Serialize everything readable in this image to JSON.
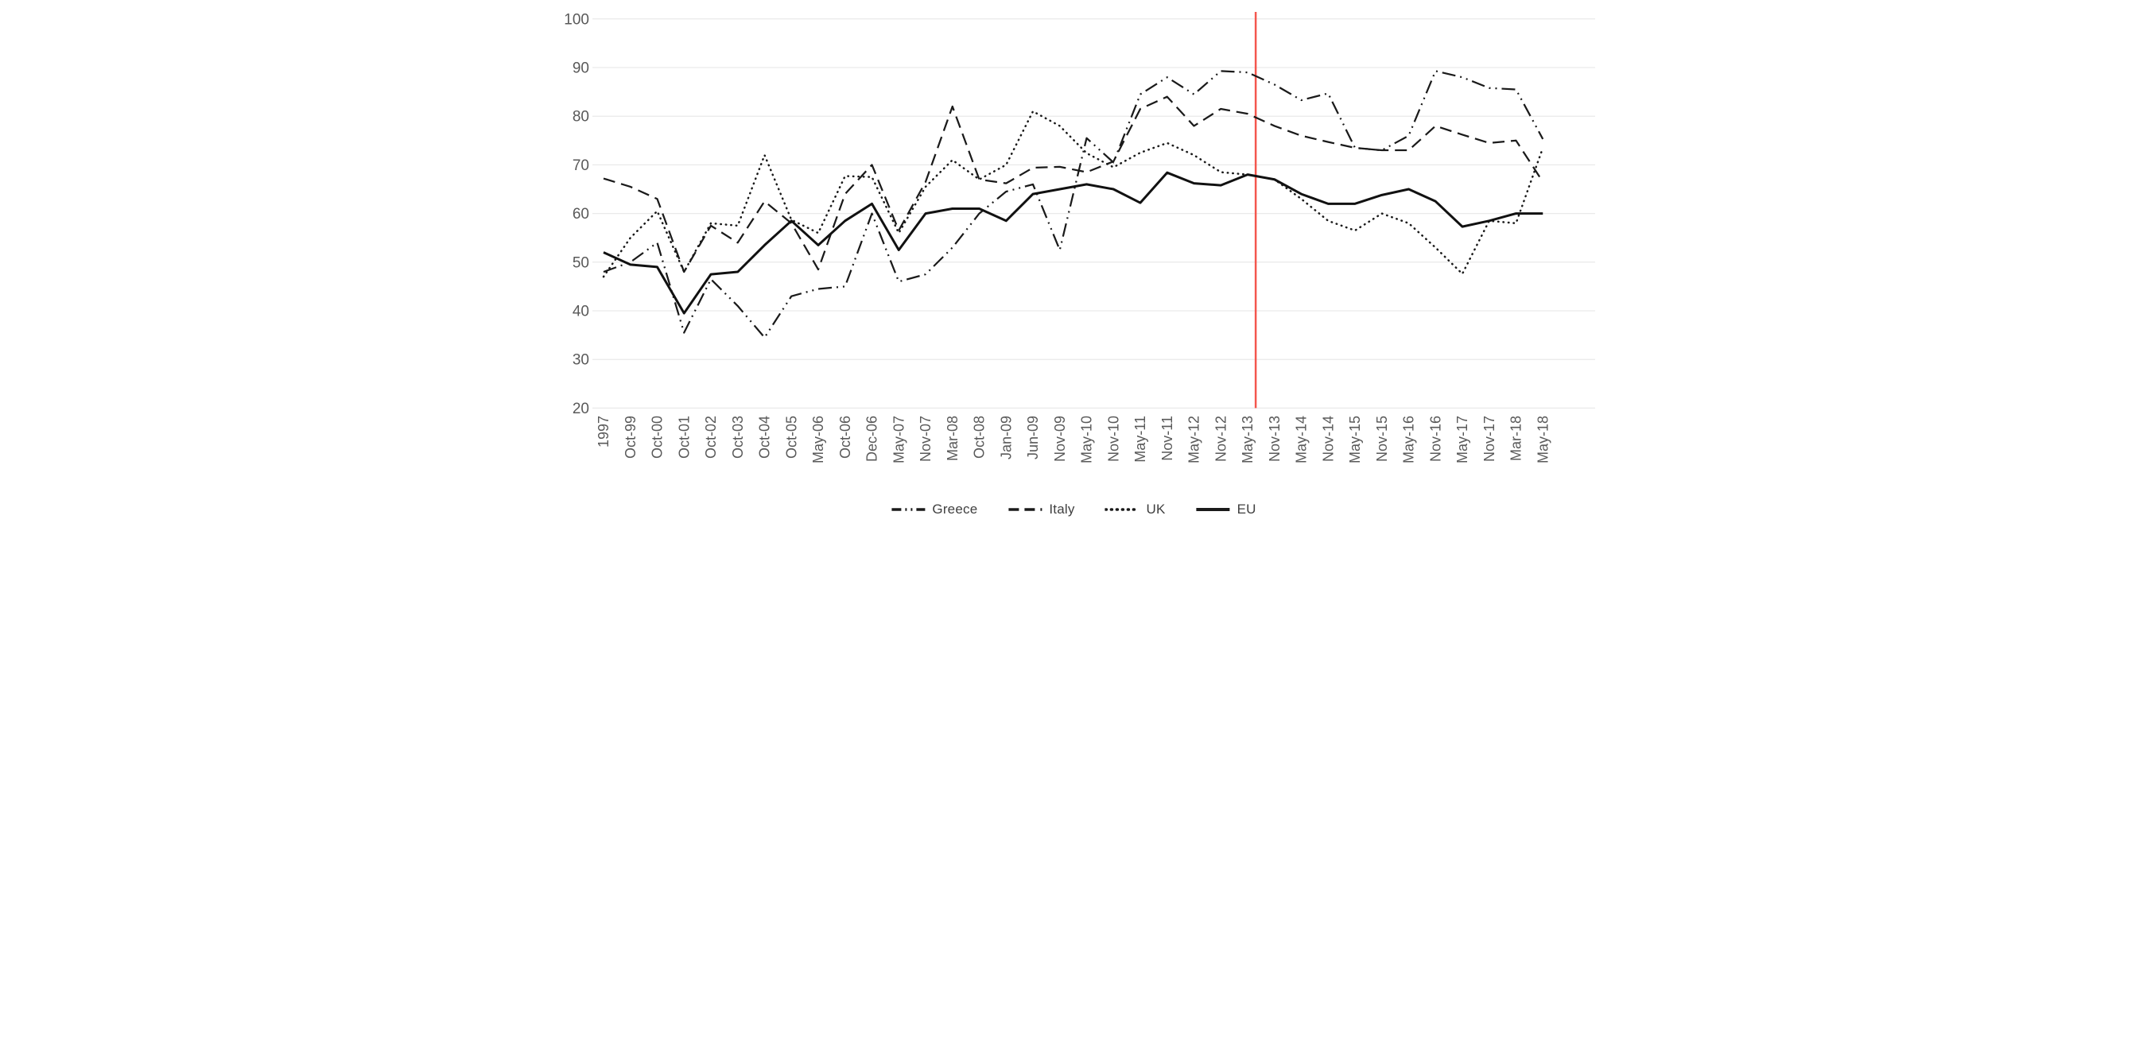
{
  "chart_data": {
    "type": "line",
    "title": "",
    "xlabel": "",
    "ylabel": "",
    "ylim": [
      20,
      100
    ],
    "ytick_step": 10,
    "ytick_labels": [
      "100",
      "90",
      "80",
      "70",
      "60",
      "50",
      "40",
      "30",
      "20"
    ],
    "grid": "horizontal",
    "legend_position": "bottom-center",
    "categories": [
      "1997",
      "Oct-99",
      "Oct-00",
      "Oct-01",
      "Oct-02",
      "Oct-03",
      "Oct-04",
      "Oct-05",
      "May-06",
      "Oct-06",
      "Dec-06",
      "May-07",
      "Nov-07",
      "Mar-08",
      "Oct-08",
      "Jan-09",
      "Jun-09",
      "Nov-09",
      "May-10",
      "Nov-10",
      "May-11",
      "Nov-11",
      "May-12",
      "Nov-12",
      "May-13",
      "Nov-13",
      "May-14",
      "Nov-14",
      "May-15",
      "Nov-15",
      "May-16",
      "Nov-16",
      "May-17",
      "Nov-17",
      "Mar-18",
      "May-18"
    ],
    "series": [
      {
        "name": "Greece",
        "style": "dash-dot-dot",
        "color": "#1a1a1a",
        "width": 4.5,
        "values": [
          48,
          50,
          54,
          35.5,
          46.5,
          41,
          34.5,
          43,
          44.5,
          45,
          60,
          46,
          47.5,
          53,
          60,
          64.5,
          66,
          52.5,
          75.5,
          70.5,
          84.5,
          88,
          84.5,
          89.3,
          89,
          86.5,
          83.3,
          84.7,
          73.5,
          73,
          76,
          89.3,
          88,
          85.8,
          85.5,
          75.3
        ]
      },
      {
        "name": "Italy",
        "style": "dashed",
        "color": "#1a1a1a",
        "width": 4.5,
        "values": [
          67.2,
          65.5,
          63,
          48,
          57.5,
          54,
          62.5,
          58,
          48.5,
          64,
          70,
          56.5,
          66.5,
          82,
          67,
          66.2,
          69.4,
          69.6,
          68.5,
          70.7,
          81.5,
          84,
          78,
          81.5,
          80.5,
          78,
          76,
          74.7,
          73.5,
          73,
          73,
          78,
          76.2,
          74.5,
          75,
          66.5
        ]
      },
      {
        "name": "UK",
        "style": "dotted",
        "color": "#1a1a1a",
        "width": 5,
        "values": [
          47,
          55,
          60.5,
          48,
          58,
          57.5,
          72,
          58.7,
          56,
          67.7,
          67.5,
          56,
          65.5,
          71,
          67,
          70,
          81,
          78,
          72.4,
          69.5,
          72.5,
          74.5,
          72,
          68.5,
          68,
          67,
          63,
          58.5,
          56.5,
          60,
          58,
          53,
          47.6,
          58.5,
          58,
          73.5
        ]
      },
      {
        "name": "EU",
        "style": "solid",
        "color": "#111111",
        "width": 6,
        "values": [
          52,
          49.5,
          49,
          39.5,
          47.5,
          48,
          53.5,
          58.5,
          53.5,
          58.5,
          62,
          52.5,
          60,
          61,
          61,
          58.5,
          64,
          65,
          66,
          65,
          62.2,
          68.4,
          66.2,
          65.8,
          68,
          67,
          64,
          62,
          62,
          63.8,
          65,
          62.5,
          57.3,
          58.5,
          60,
          60
        ]
      }
    ],
    "event_marker": {
      "label": "",
      "x_index": 24.3,
      "between": "May-13 and Nov-13",
      "color": "#f4564e"
    },
    "colors": {
      "gridline": "#e9e9e9",
      "axis_text": "#595959",
      "line": "#1a1a1a",
      "marker": "#f4564e",
      "background": "#ffffff"
    }
  },
  "legend": {
    "items": [
      {
        "label": "Greece",
        "style": "dash-dot-dot"
      },
      {
        "label": "Italy",
        "style": "dashed"
      },
      {
        "label": "UK",
        "style": "dotted"
      },
      {
        "label": "EU",
        "style": "solid"
      }
    ]
  }
}
